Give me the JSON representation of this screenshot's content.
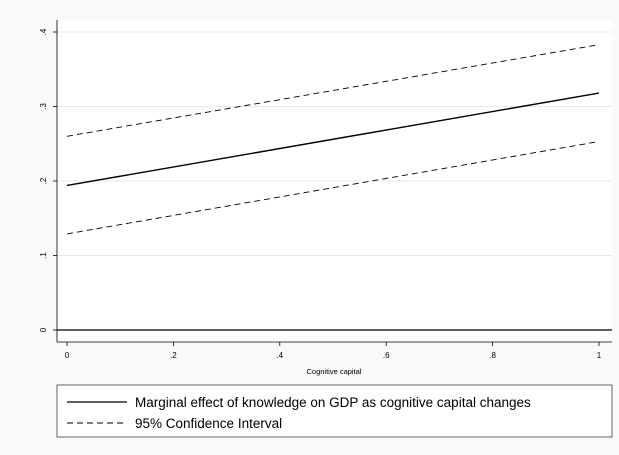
{
  "chart_data": {
    "type": "line",
    "title": "",
    "xlabel": "Cognitive capital",
    "ylabel": "",
    "xlim": [
      0,
      1
    ],
    "ylim": [
      0,
      0.4
    ],
    "x_ticks": [
      "0",
      ".2",
      ".4",
      ".6",
      ".8",
      "1"
    ],
    "x_tick_values": [
      0,
      0.2,
      0.4,
      0.6,
      0.8,
      1
    ],
    "y_ticks": [
      "0",
      ".1",
      ".2",
      ".3",
      ".4"
    ],
    "y_tick_values": [
      0,
      0.1,
      0.2,
      0.3,
      0.4
    ],
    "grid": true,
    "reference_line_y": 0,
    "legend_position": "bottom",
    "x": [
      0,
      1
    ],
    "series": [
      {
        "name": "Marginal effect of knowledge on GDP as cognitive capital changes",
        "style": "solid",
        "values": [
          0.194,
          0.318
        ]
      },
      {
        "name": "95% Confidence Interval",
        "style": "dashed",
        "values": [
          0.26,
          0.383
        ]
      },
      {
        "name": "",
        "style": "dashed",
        "values": [
          0.129,
          0.253
        ]
      }
    ],
    "legend": [
      {
        "label": "Marginal effect of knowledge on GDP as cognitive capital changes",
        "style": "solid"
      },
      {
        "label": "95% Confidence Interval",
        "style": "dashed"
      }
    ]
  }
}
